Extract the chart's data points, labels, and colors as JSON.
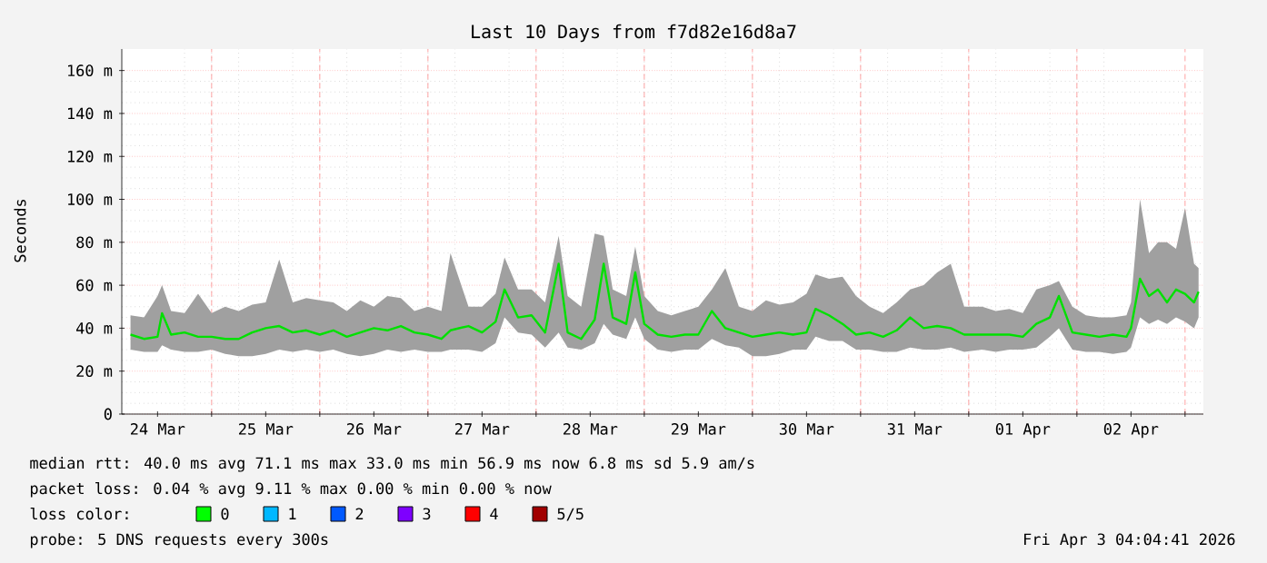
{
  "chart_data": {
    "type": "line",
    "title": "Last 10 Days from f7d82e16d8a7",
    "ylabel": "Seconds",
    "xlim": [
      "2026-03-24T04:04",
      "2026-04-03T04:04"
    ],
    "xticks": [
      {
        "value": "2026-03-24T12:00",
        "label": "24 Mar"
      },
      {
        "value": "2026-03-25T12:00",
        "label": "25 Mar"
      },
      {
        "value": "2026-03-26T12:00",
        "label": "26 Mar"
      },
      {
        "value": "2026-03-27T12:00",
        "label": "27 Mar"
      },
      {
        "value": "2026-03-28T12:00",
        "label": "28 Mar"
      },
      {
        "value": "2026-03-29T12:00",
        "label": "29 Mar"
      },
      {
        "value": "2026-03-30T12:00",
        "label": "30 Mar"
      },
      {
        "value": "2026-03-31T12:00",
        "label": "31 Mar"
      },
      {
        "value": "2026-04-01T12:00",
        "label": "01 Apr"
      },
      {
        "value": "2026-04-02T12:00",
        "label": "02 Apr"
      },
      {
        "value": "2026-03-25T00:00",
        "label": null
      },
      {
        "value": "2026-03-26T00:00",
        "label": null
      },
      {
        "value": "2026-03-27T00:00",
        "label": null
      },
      {
        "value": "2026-03-28T00:00",
        "label": null
      },
      {
        "value": "2026-03-29T00:00",
        "label": null
      },
      {
        "value": "2026-03-30T00:00",
        "label": null
      },
      {
        "value": "2026-03-31T00:00",
        "label": null
      },
      {
        "value": "2026-04-01T00:00",
        "label": null
      },
      {
        "value": "2026-04-02T00:00",
        "label": null
      },
      {
        "value": "2026-04-03T00:00",
        "label": null
      }
    ],
    "ylim": [
      0,
      170
    ],
    "yticks": [
      0,
      {
        "value": 20,
        "label": "20 m"
      },
      {
        "value": 40,
        "label": "40 m"
      },
      {
        "value": 60,
        "label": "60 m"
      },
      {
        "value": 80,
        "label": "80 m"
      },
      {
        "value": 100,
        "label": "100 m"
      },
      {
        "value": 120,
        "label": "120 m"
      },
      {
        "value": 140,
        "label": "140 m"
      },
      {
        "value": 160,
        "label": "160 m"
      }
    ],
    "grid": true,
    "marker": "none",
    "line_style": "solid",
    "x": [
      "2026-03-24T06:00",
      "2026-03-24T09:00",
      "2026-03-24T12:00",
      "2026-03-24T13:00",
      "2026-03-24T15:00",
      "2026-03-24T18:00",
      "2026-03-24T21:00",
      "2026-03-25T00:00",
      "2026-03-25T03:00",
      "2026-03-25T06:00",
      "2026-03-25T09:00",
      "2026-03-25T12:00",
      "2026-03-25T15:00",
      "2026-03-25T18:00",
      "2026-03-25T21:00",
      "2026-03-26T00:00",
      "2026-03-26T03:00",
      "2026-03-26T06:00",
      "2026-03-26T09:00",
      "2026-03-26T12:00",
      "2026-03-26T15:00",
      "2026-03-26T18:00",
      "2026-03-26T21:00",
      "2026-03-27T00:00",
      "2026-03-27T03:00",
      "2026-03-27T05:00",
      "2026-03-27T09:00",
      "2026-03-27T12:00",
      "2026-03-27T15:00",
      "2026-03-27T17:00",
      "2026-03-27T20:00",
      "2026-03-27T23:00",
      "2026-03-28T02:00",
      "2026-03-28T05:00",
      "2026-03-28T07:00",
      "2026-03-28T10:00",
      "2026-03-28T13:00",
      "2026-03-28T15:00",
      "2026-03-28T17:00",
      "2026-03-28T20:00",
      "2026-03-28T22:00",
      "2026-03-29T00:00",
      "2026-03-29T03:00",
      "2026-03-29T06:00",
      "2026-03-29T09:00",
      "2026-03-29T12:00",
      "2026-03-29T15:00",
      "2026-03-29T18:00",
      "2026-03-29T21:00",
      "2026-03-30T00:00",
      "2026-03-30T03:00",
      "2026-03-30T06:00",
      "2026-03-30T09:00",
      "2026-03-30T12:00",
      "2026-03-30T14:00",
      "2026-03-30T17:00",
      "2026-03-30T20:00",
      "2026-03-30T23:00",
      "2026-03-31T02:00",
      "2026-03-31T05:00",
      "2026-03-31T08:00",
      "2026-03-31T11:00",
      "2026-03-31T14:00",
      "2026-03-31T17:00",
      "2026-03-31T20:00",
      "2026-03-31T23:00",
      "2026-04-01T03:00",
      "2026-04-01T06:00",
      "2026-04-01T09:00",
      "2026-04-01T12:00",
      "2026-04-01T15:00",
      "2026-04-01T18:00",
      "2026-04-01T20:00",
      "2026-04-01T23:00",
      "2026-04-02T02:00",
      "2026-04-02T05:00",
      "2026-04-02T08:00",
      "2026-04-02T11:00",
      "2026-04-02T12:00",
      "2026-04-02T14:00",
      "2026-04-02T16:00",
      "2026-04-02T18:00",
      "2026-04-02T20:00",
      "2026-04-02T22:00",
      "2026-04-03T00:00",
      "2026-04-03T02:00",
      "2026-04-03T03:00"
    ],
    "series": [
      {
        "color": "#00e000",
        "values": [
          37,
          35,
          36,
          47,
          37,
          38,
          36,
          36,
          35,
          35,
          38,
          40,
          41,
          38,
          39,
          37,
          39,
          36,
          38,
          40,
          39,
          41,
          38,
          37,
          35,
          39,
          41,
          38,
          43,
          58,
          45,
          46,
          38,
          70,
          38,
          35,
          44,
          70,
          45,
          42,
          66,
          42,
          37,
          36,
          37,
          37,
          48,
          40,
          38,
          36,
          37,
          38,
          37,
          38,
          49,
          46,
          42,
          37,
          38,
          36,
          39,
          45,
          40,
          41,
          40,
          37,
          37,
          37,
          37,
          36,
          42,
          45,
          55,
          38,
          37,
          36,
          37,
          36,
          40,
          63,
          55,
          58,
          52,
          58,
          56,
          52,
          57
        ],
        "lower": [
          30,
          29,
          29,
          32,
          30,
          29,
          29,
          30,
          28,
          27,
          27,
          28,
          30,
          29,
          30,
          29,
          30,
          28,
          27,
          28,
          30,
          29,
          30,
          29,
          29,
          30,
          30,
          29,
          33,
          45,
          38,
          37,
          31,
          38,
          31,
          30,
          33,
          42,
          37,
          35,
          45,
          35,
          30,
          29,
          30,
          30,
          35,
          32,
          31,
          27,
          27,
          28,
          30,
          30,
          36,
          34,
          34,
          30,
          30,
          29,
          29,
          31,
          30,
          30,
          31,
          29,
          30,
          29,
          30,
          30,
          31,
          36,
          40,
          30,
          29,
          29,
          28,
          29,
          31,
          45,
          42,
          44,
          42,
          45,
          43,
          40,
          45
        ],
        "upper": [
          46,
          45,
          55,
          60,
          48,
          47,
          56,
          47,
          50,
          48,
          51,
          52,
          72,
          52,
          54,
          53,
          52,
          48,
          53,
          50,
          55,
          54,
          48,
          50,
          48,
          75,
          50,
          50,
          56,
          73,
          58,
          58,
          52,
          83,
          55,
          50,
          84,
          83,
          58,
          55,
          78,
          55,
          48,
          46,
          48,
          50,
          58,
          68,
          50,
          48,
          53,
          51,
          52,
          56,
          65,
          63,
          64,
          55,
          50,
          47,
          52,
          58,
          60,
          66,
          70,
          50,
          50,
          48,
          49,
          47,
          58,
          60,
          62,
          50,
          46,
          45,
          45,
          46,
          52,
          100,
          75,
          80,
          80,
          77,
          96,
          70,
          68
        ]
      }
    ],
    "annotations": [
      "median rtt:  40.0 ms avg  71.1 ms max  33.0 ms min  56.9 ms now  6.8 ms sd  5.9   am/s",
      "packet loss: 0.04 % avg  9.11 % max  0.00 % min  0.00 % now",
      "loss color:",
      "0",
      "1",
      "2",
      "3",
      "4",
      "5/5",
      "probe:       5 DNS requests every 300s",
      "Fri Apr  3 04:04:41 2026"
    ]
  }
}
